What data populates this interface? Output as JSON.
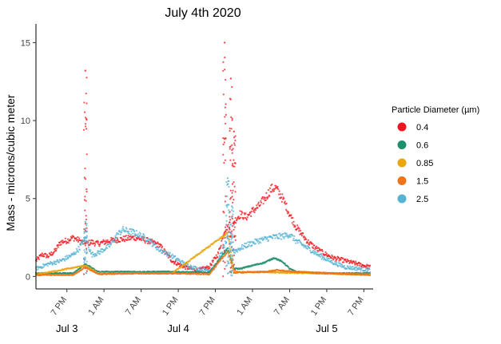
{
  "chart_data": {
    "type": "scatter",
    "title": "July 4th 2020",
    "xlabel": "",
    "ylabel": "Mass - microns/cubic meter",
    "ylim": [
      -0.8,
      16.2
    ],
    "xlim": [
      "2020-07-03 14:00",
      "2020-07-05 20:30"
    ],
    "y_ticks": [
      0,
      5,
      10,
      15
    ],
    "y_tick_labels": [
      "0",
      "5",
      "10",
      "15"
    ],
    "x_ticks": [
      "2020-07-03 19:00",
      "2020-07-04 01:00",
      "2020-07-04 07:00",
      "2020-07-04 13:00",
      "2020-07-04 19:00",
      "2020-07-05 01:00",
      "2020-07-05 07:00",
      "2020-07-05 13:00",
      "2020-07-05 19:00"
    ],
    "x_tick_labels": [
      "7 PM",
      "1 AM",
      "7 AM",
      "1 PM",
      "7 PM",
      "1 AM",
      "7 AM",
      "1 PM",
      "7 PM"
    ],
    "day_labels": [
      {
        "text": "Jul 3",
        "at": "2020-07-03 19:00"
      },
      {
        "text": "Jul 4",
        "at": "2020-07-04 13:00"
      },
      {
        "text": "Jul 5",
        "at": "2020-07-05 13:00"
      }
    ],
    "grid": false,
    "legend": {
      "title": "Particle Diameter (µm)",
      "placement": "right"
    },
    "series": [
      {
        "name": "0.4",
        "color": "#f0151c",
        "x": [
          "2020-07-03 14:00",
          "2020-07-03 15:00",
          "2020-07-03 16:00",
          "2020-07-03 17:00",
          "2020-07-03 18:00",
          "2020-07-03 19:00",
          "2020-07-03 20:00",
          "2020-07-03 21:00",
          "2020-07-03 22:00",
          "2020-07-03 23:00",
          "2020-07-04 00:00",
          "2020-07-04 02:00",
          "2020-07-04 04:00",
          "2020-07-04 06:00",
          "2020-07-04 08:00",
          "2020-07-04 10:00",
          "2020-07-04 12:00",
          "2020-07-04 14:00",
          "2020-07-04 16:00",
          "2020-07-04 18:00",
          "2020-07-04 19:30",
          "2020-07-04 20:30",
          "2020-07-04 21:00",
          "2020-07-04 21:30",
          "2020-07-04 22:00",
          "2020-07-04 23:00",
          "2020-07-05 00:00",
          "2020-07-05 01:00",
          "2020-07-05 02:00",
          "2020-07-05 03:00",
          "2020-07-05 04:00",
          "2020-07-05 04:45",
          "2020-07-05 06:00",
          "2020-07-05 07:00",
          "2020-07-05 08:00",
          "2020-07-05 10:00",
          "2020-07-05 12:00",
          "2020-07-05 14:00",
          "2020-07-05 16:00",
          "2020-07-05 18:00",
          "2020-07-05 20:00"
        ],
        "values": [
          1.0,
          1.4,
          1.3,
          1.6,
          2.2,
          2.3,
          2.5,
          2.3,
          2.1,
          2.2,
          2.1,
          2.3,
          2.4,
          2.5,
          2.3,
          2.0,
          1.0,
          0.6,
          0.4,
          0.6,
          1.5,
          3.0,
          3.2,
          2.8,
          3.5,
          4.0,
          3.8,
          4.2,
          4.5,
          5.0,
          5.6,
          5.7,
          4.9,
          4.0,
          3.2,
          2.2,
          1.6,
          1.2,
          1.0,
          0.8,
          0.6
        ],
        "spikes": [
          {
            "x": "2020-07-03 22:00",
            "peak": 13.2
          },
          {
            "x": "2020-07-04 20:30",
            "peak": 15.0
          },
          {
            "x": "2020-07-04 21:30",
            "peak": 12.7
          },
          {
            "x": "2020-07-04 22:00",
            "peak": 9.3
          }
        ]
      },
      {
        "name": "0.6",
        "color": "#1f8f6e",
        "x": [
          "2020-07-03 14:00",
          "2020-07-03 20:00",
          "2020-07-03 22:00",
          "2020-07-04 00:00",
          "2020-07-04 06:00",
          "2020-07-04 12:00",
          "2020-07-04 18:00",
          "2020-07-04 21:00",
          "2020-07-04 22:00",
          "2020-07-04 23:00",
          "2020-07-05 01:00",
          "2020-07-05 03:00",
          "2020-07-05 04:30",
          "2020-07-05 06:00",
          "2020-07-05 07:00",
          "2020-07-05 08:00",
          "2020-07-05 12:00",
          "2020-07-05 20:00"
        ],
        "values": [
          0.2,
          0.2,
          0.8,
          0.3,
          0.3,
          0.3,
          0.25,
          1.8,
          0.5,
          0.5,
          0.7,
          0.9,
          1.2,
          0.9,
          0.5,
          0.3,
          0.2,
          0.2
        ]
      },
      {
        "name": "0.85",
        "color": "#e9a70f",
        "x": [
          "2020-07-03 14:00",
          "2020-07-03 22:00",
          "2020-07-04 00:00",
          "2020-07-04 12:00",
          "2020-07-04 21:00",
          "2020-07-04 22:00",
          "2020-07-05 06:00",
          "2020-07-05 20:00"
        ],
        "values": [
          0.12,
          0.7,
          0.2,
          0.2,
          2.8,
          0.3,
          0.25,
          0.12
        ]
      },
      {
        "name": "1.5",
        "color": "#ef7416",
        "x": [
          "2020-07-03 14:00",
          "2020-07-03 20:00",
          "2020-07-03 22:00",
          "2020-07-04 00:00",
          "2020-07-04 06:00",
          "2020-07-04 12:00",
          "2020-07-04 18:00",
          "2020-07-04 21:00",
          "2020-07-04 22:00",
          "2020-07-05 03:00",
          "2020-07-05 05:00",
          "2020-07-05 08:00",
          "2020-07-05 14:00",
          "2020-07-05 20:00"
        ],
        "values": [
          0.1,
          0.1,
          0.6,
          0.15,
          0.2,
          0.2,
          0.15,
          1.6,
          0.25,
          0.3,
          0.4,
          0.3,
          0.2,
          0.1
        ]
      },
      {
        "name": "2.5",
        "color": "#55b3d3",
        "x": [
          "2020-07-03 14:00",
          "2020-07-03 16:00",
          "2020-07-03 18:00",
          "2020-07-03 20:00",
          "2020-07-03 21:00",
          "2020-07-03 22:00",
          "2020-07-03 23:00",
          "2020-07-04 00:00",
          "2020-07-04 02:00",
          "2020-07-04 03:00",
          "2020-07-04 04:00",
          "2020-07-04 06:00",
          "2020-07-04 08:00",
          "2020-07-04 10:00",
          "2020-07-04 12:00",
          "2020-07-04 14:00",
          "2020-07-04 16:00",
          "2020-07-04 18:00",
          "2020-07-04 19:00",
          "2020-07-04 20:00",
          "2020-07-04 21:00",
          "2020-07-04 22:00",
          "2020-07-05 00:00",
          "2020-07-05 02:00",
          "2020-07-05 04:00",
          "2020-07-05 06:00",
          "2020-07-05 07:00",
          "2020-07-05 08:00",
          "2020-07-05 10:00",
          "2020-07-05 12:00",
          "2020-07-05 14:00",
          "2020-07-05 16:00",
          "2020-07-05 18:00",
          "2020-07-05 20:00"
        ],
        "values": [
          0.5,
          0.8,
          1.0,
          1.4,
          1.8,
          2.5,
          1.4,
          1.5,
          2.0,
          2.6,
          3.0,
          2.8,
          2.4,
          1.7,
          1.3,
          0.8,
          0.5,
          0.4,
          0.6,
          1.5,
          2.5,
          1.6,
          2.0,
          2.3,
          2.5,
          2.6,
          2.7,
          2.3,
          1.8,
          1.3,
          0.9,
          0.6,
          0.5,
          0.4
        ],
        "spikes": [
          {
            "x": "2020-07-03 22:00",
            "peak": 3.5
          },
          {
            "x": "2020-07-04 21:00",
            "peak": 6.3
          },
          {
            "x": "2020-07-04 21:40",
            "peak": 4.5
          }
        ]
      }
    ]
  }
}
